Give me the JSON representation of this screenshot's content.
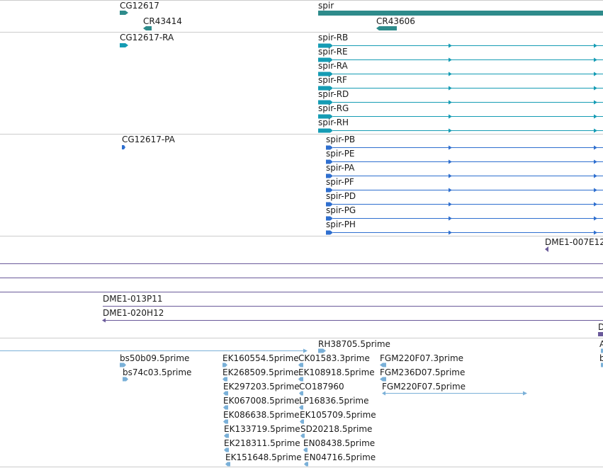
{
  "colors": {
    "gene": "#2e8b8b",
    "mrna": "#159cb4",
    "protein": "#2f6fcf",
    "clone": "#6a5a9a",
    "est": "#7ab0d8",
    "divider": "#cccccc"
  },
  "tracks": {
    "genes": {
      "labels": [
        "CG12617",
        "CR43414",
        "spir",
        "CR43606"
      ]
    },
    "transcripts": {
      "labels": [
        "CG12617-RA",
        "spir-RB",
        "spir-RE",
        "spir-RA",
        "spir-RF",
        "spir-RD",
        "spir-RG",
        "spir-RH"
      ]
    },
    "proteins": {
      "labels": [
        "CG12617-PA",
        "spir-PB",
        "spir-PE",
        "spir-PA",
        "spir-PF",
        "spir-PD",
        "spir-PG",
        "spir-PH"
      ]
    },
    "clones": {
      "labels": [
        "DME1-007E12",
        "DME1-013P11",
        "DME1-020H12",
        "D"
      ]
    },
    "ests": {
      "labels": [
        "RH38705.5prime",
        "A",
        "bs50b09.5prime",
        "b",
        "bs74c03.5prime",
        "EK160554.5prime",
        "EK268509.5prime",
        "EK297203.5prime",
        "EK067008.5prime",
        "EK086638.5prime",
        "EK133719.5prime",
        "EK218311.5prime",
        "EK151648.5prime",
        "CK01583.3prime",
        "EK108918.5prime",
        "CO187960",
        "LP16836.5prime",
        "EK105709.5prime",
        "SD20218.5prime",
        "EN08438.5prime",
        "EN04716.5prime",
        "FGM220F07.3prime",
        "FGM236D07.5prime",
        "FGM220F07.5prime"
      ]
    }
  }
}
